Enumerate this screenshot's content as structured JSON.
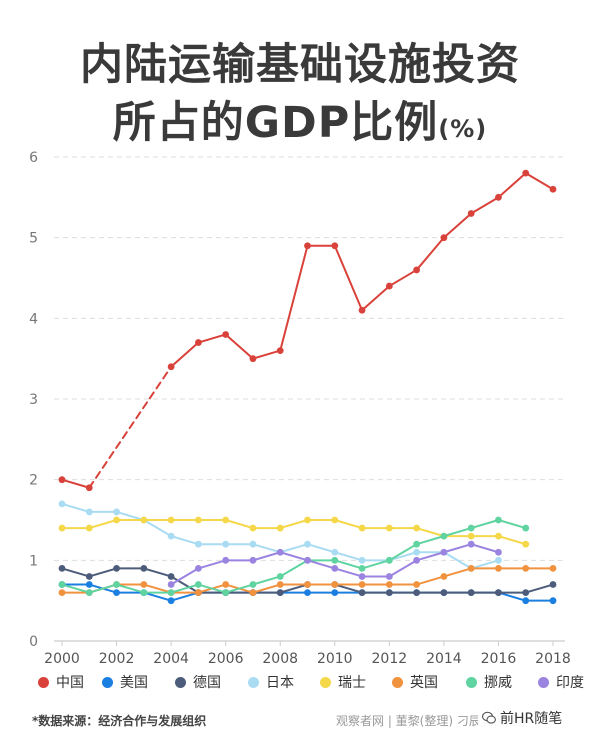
{
  "title": {
    "line1": "内陆运输基础设施投资",
    "line2": "所占的GDP比例",
    "unit": "(%)"
  },
  "footer": {
    "source": "*数据来源：经济合作与发展组织",
    "credit": "观察者网 | 董黎(整理) 刁辰昊(制图)",
    "watermark": "前HR随笔"
  },
  "colors": {
    "grid": "#dddddd",
    "axis": "#cccccc",
    "tick_label": "#777777"
  },
  "chart_data": {
    "type": "line",
    "title": "内陆运输基础设施投资所占的GDP比例(%)",
    "xlabel": "",
    "ylabel": "",
    "ylim": [
      0,
      6
    ],
    "yticks": [
      0,
      1,
      2,
      3,
      4,
      5,
      6
    ],
    "xlim": [
      2000,
      2018
    ],
    "xticks": [
      2000,
      2002,
      2004,
      2006,
      2008,
      2010,
      2012,
      2014,
      2016,
      2018
    ],
    "grid": true,
    "legend_position": "bottom",
    "series": [
      {
        "name": "中国",
        "color": "#d9423a",
        "dashed_range": [
          2001,
          2004
        ],
        "x": [
          2000,
          2001,
          2004,
          2005,
          2006,
          2007,
          2008,
          2009,
          2010,
          2011,
          2012,
          2013,
          2014,
          2015,
          2016,
          2017,
          2018
        ],
        "values": [
          2.0,
          1.9,
          3.4,
          3.7,
          3.8,
          3.5,
          3.6,
          4.9,
          4.9,
          4.1,
          4.4,
          4.6,
          5.0,
          5.3,
          5.5,
          5.8,
          5.6
        ]
      },
      {
        "name": "美国",
        "color": "#1a7fe0",
        "x": [
          2000,
          2001,
          2002,
          2003,
          2004,
          2005,
          2006,
          2007,
          2008,
          2009,
          2010,
          2011,
          2012,
          2013,
          2014,
          2015,
          2016,
          2017,
          2018
        ],
        "values": [
          0.7,
          0.7,
          0.6,
          0.6,
          0.5,
          0.6,
          0.6,
          0.6,
          0.6,
          0.6,
          0.6,
          0.6,
          0.6,
          0.6,
          0.6,
          0.6,
          0.6,
          0.5,
          0.5
        ]
      },
      {
        "name": "德国",
        "color": "#4c5c7a",
        "x": [
          2000,
          2001,
          2002,
          2003,
          2004,
          2005,
          2006,
          2007,
          2008,
          2009,
          2010,
          2011,
          2012,
          2013,
          2014,
          2015,
          2016,
          2017,
          2018
        ],
        "values": [
          0.9,
          0.8,
          0.9,
          0.9,
          0.8,
          0.6,
          0.6,
          0.6,
          0.6,
          0.7,
          0.7,
          0.6,
          0.6,
          0.6,
          0.6,
          0.6,
          0.6,
          0.6,
          0.7
        ]
      },
      {
        "name": "日本",
        "color": "#a9dcf2",
        "x": [
          2000,
          2001,
          2002,
          2003,
          2004,
          2005,
          2006,
          2007,
          2008,
          2009,
          2010,
          2011,
          2012,
          2013,
          2014,
          2015,
          2016
        ],
        "values": [
          1.7,
          1.6,
          1.6,
          1.5,
          1.3,
          1.2,
          1.2,
          1.2,
          1.1,
          1.2,
          1.1,
          1.0,
          1.0,
          1.1,
          1.1,
          0.9,
          1.0
        ]
      },
      {
        "name": "瑞士",
        "color": "#f5d84a",
        "x": [
          2000,
          2001,
          2002,
          2003,
          2004,
          2005,
          2006,
          2007,
          2008,
          2009,
          2010,
          2011,
          2012,
          2013,
          2014,
          2015,
          2016,
          2017
        ],
        "values": [
          1.4,
          1.4,
          1.5,
          1.5,
          1.5,
          1.5,
          1.5,
          1.4,
          1.4,
          1.5,
          1.5,
          1.4,
          1.4,
          1.4,
          1.3,
          1.3,
          1.3,
          1.2
        ]
      },
      {
        "name": "英国",
        "color": "#f0923e",
        "x": [
          2000,
          2001,
          2002,
          2003,
          2004,
          2005,
          2006,
          2007,
          2008,
          2009,
          2010,
          2011,
          2012,
          2013,
          2014,
          2015,
          2016,
          2017,
          2018
        ],
        "values": [
          0.6,
          0.6,
          0.7,
          0.7,
          0.6,
          0.6,
          0.7,
          0.6,
          0.7,
          0.7,
          0.7,
          0.7,
          0.7,
          0.7,
          0.8,
          0.9,
          0.9,
          0.9,
          0.9
        ]
      },
      {
        "name": "挪威",
        "color": "#5fd3a0",
        "x": [
          2000,
          2001,
          2002,
          2003,
          2004,
          2005,
          2006,
          2007,
          2008,
          2009,
          2010,
          2011,
          2012,
          2013,
          2014,
          2015,
          2016,
          2017
        ],
        "values": [
          0.7,
          0.6,
          0.7,
          0.6,
          0.6,
          0.7,
          0.6,
          0.7,
          0.8,
          1.0,
          1.0,
          0.9,
          1.0,
          1.2,
          1.3,
          1.4,
          1.5,
          1.4
        ]
      },
      {
        "name": "印度",
        "color": "#9b83e0",
        "x": [
          2004,
          2005,
          2006,
          2007,
          2008,
          2009,
          2010,
          2011,
          2012,
          2013,
          2014,
          2015,
          2016
        ],
        "values": [
          0.7,
          0.9,
          1.0,
          1.0,
          1.1,
          1.0,
          0.9,
          0.8,
          0.8,
          1.0,
          1.1,
          1.2,
          1.1
        ]
      }
    ]
  }
}
